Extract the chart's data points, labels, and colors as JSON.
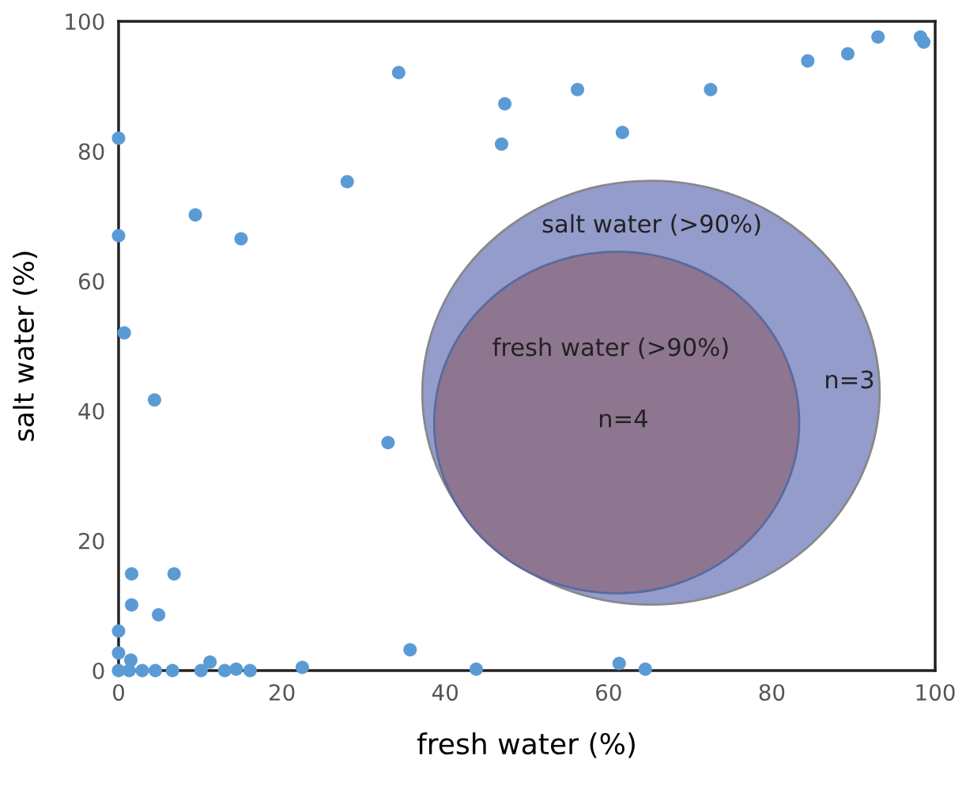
{
  "chart_data": {
    "type": "scatter",
    "xlabel": "fresh water (%)",
    "ylabel": "salt water (%)",
    "xlim": [
      0,
      100
    ],
    "ylim": [
      0,
      100
    ],
    "xticks": [
      0,
      20,
      40,
      60,
      80,
      100
    ],
    "yticks": [
      0,
      20,
      40,
      60,
      80,
      100
    ],
    "grid": false,
    "marker": "circle",
    "series": [
      {
        "color": "#5b9bd5",
        "x": [
          0,
          0,
          0.7,
          4.4,
          9.4,
          15.0,
          28.0,
          34.3,
          33.0,
          35.7,
          43.8,
          46.9,
          47.3,
          56.2,
          61.7,
          61.3,
          64.5,
          72.5,
          84.4,
          89.3,
          93.0,
          98.2,
          98.6,
          1.6,
          6.8,
          1.6,
          4.9,
          0,
          0,
          1.5,
          0,
          1.3,
          2.9,
          4.5,
          6.6,
          10.1,
          11.2,
          13.0,
          14.4,
          16.1,
          22.5
        ],
        "values": [
          82,
          67,
          52,
          41.7,
          70.2,
          66.5,
          75.3,
          92.1,
          35.1,
          3.2,
          0.2,
          81.1,
          87.3,
          89.5,
          82.9,
          1.1,
          0.2,
          89.5,
          93.9,
          95.0,
          97.6,
          97.6,
          96.8,
          14.9,
          14.9,
          10.1,
          8.6,
          6.1,
          2.7,
          1.6,
          0,
          0,
          0,
          0,
          0,
          0,
          1.3,
          0,
          0.2,
          0,
          0.5
        ]
      }
    ],
    "annotations": [
      "salt water (>90%)",
      "n=3",
      "fresh water (>90%)",
      "n=4"
    ]
  }
}
